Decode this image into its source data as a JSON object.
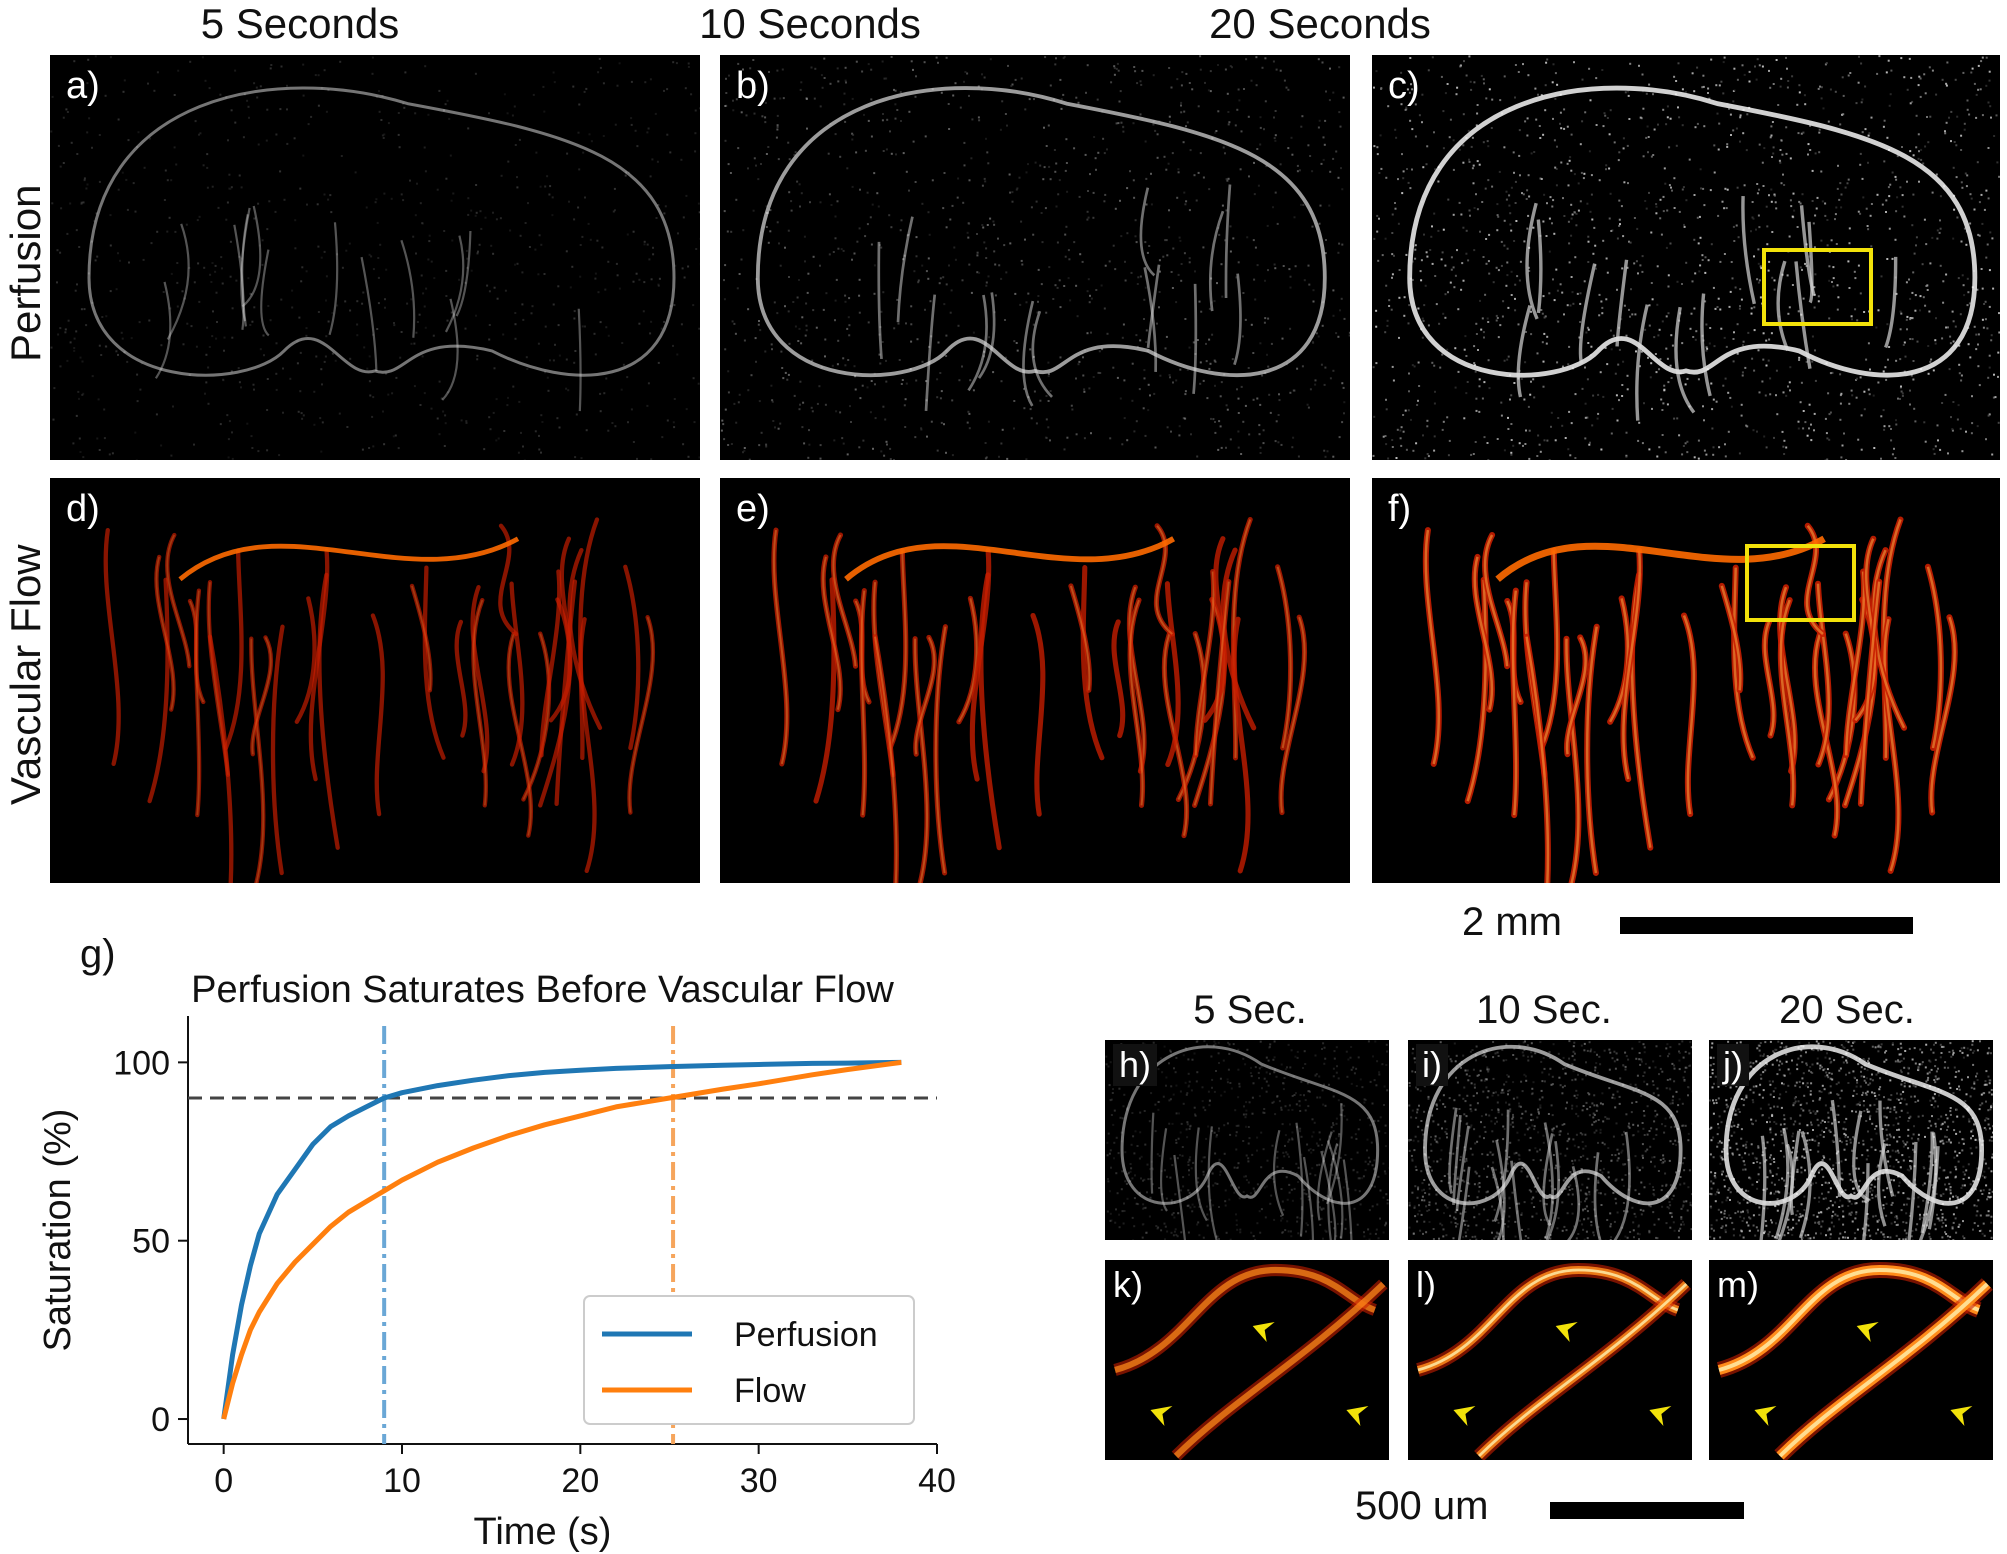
{
  "top_figure": {
    "column_titles": [
      "5 Seconds",
      "10 Seconds",
      "20 Seconds"
    ],
    "row_titles": [
      "Perfusion",
      "Vascular Flow"
    ],
    "panels": [
      {
        "label": "a)",
        "row": "perfusion",
        "col": 0,
        "intensity": 0.35
      },
      {
        "label": "b)",
        "row": "perfusion",
        "col": 1,
        "intensity": 0.6
      },
      {
        "label": "c)",
        "row": "perfusion",
        "col": 2,
        "intensity": 0.95
      },
      {
        "label": "d)",
        "row": "flow",
        "col": 0,
        "intensity": 0.45
      },
      {
        "label": "e)",
        "row": "flow",
        "col": 1,
        "intensity": 0.7
      },
      {
        "label": "f)",
        "row": "flow",
        "col": 2,
        "intensity": 1.0
      }
    ],
    "scalebar_label": "2 mm",
    "highlight_color": "#f2e20a"
  },
  "chart_label": "g)",
  "chart_data": {
    "type": "line",
    "title": "Perfusion Saturates Before Vascular Flow",
    "xlabel": "Time (s)",
    "ylabel": "Saturation (%)",
    "xlim": [
      -2,
      40
    ],
    "ylim": [
      -7,
      113
    ],
    "xticks": [
      0,
      10,
      20,
      30,
      40
    ],
    "yticks": [
      0,
      50,
      100
    ],
    "series": [
      {
        "name": "Perfusion",
        "color": "#1f77b4",
        "x": [
          0,
          0.5,
          1,
          1.5,
          2,
          3,
          4,
          5,
          6,
          7,
          8,
          9,
          10,
          12,
          14,
          16,
          18,
          20,
          22,
          25,
          28,
          30,
          33,
          35,
          38
        ],
        "y": [
          0,
          18,
          32,
          43,
          52,
          63,
          70,
          77,
          82,
          85,
          87.5,
          90,
          91.5,
          93.5,
          95,
          96.3,
          97.2,
          97.8,
          98.3,
          98.8,
          99.2,
          99.4,
          99.7,
          99.8,
          100
        ]
      },
      {
        "name": "Flow",
        "color": "#ff7f0e",
        "x": [
          0,
          0.5,
          1,
          1.5,
          2,
          3,
          4,
          5,
          6,
          7,
          8,
          9,
          10,
          12,
          14,
          16,
          18,
          20,
          22,
          25,
          28,
          30,
          33,
          35,
          38
        ],
        "y": [
          0,
          10,
          18,
          25,
          30,
          38,
          44,
          49,
          54,
          58,
          61,
          64,
          67,
          72,
          76,
          79.5,
          82.5,
          85,
          87.5,
          90,
          92.5,
          94,
          96.5,
          98,
          100
        ]
      }
    ],
    "reference_lines": [
      {
        "orientation": "horizontal",
        "value": 90,
        "color": "#444444",
        "style": "dashed"
      },
      {
        "orientation": "vertical",
        "value": 9,
        "color": "#6aa7d6",
        "style": "dash-dot"
      },
      {
        "orientation": "vertical",
        "value": 25.2,
        "color": "#f6a55c",
        "style": "dash-dot"
      }
    ],
    "legend": {
      "position": "lower-right",
      "entries": [
        "Perfusion",
        "Flow"
      ]
    },
    "grid": false
  },
  "inset_figure": {
    "column_titles": [
      "5 Sec.",
      "10 Sec.",
      "20 Sec."
    ],
    "panels": [
      {
        "label": "h)",
        "row": "perfusion",
        "col": 0,
        "intensity": 0.35
      },
      {
        "label": "i)",
        "row": "perfusion",
        "col": 1,
        "intensity": 0.6
      },
      {
        "label": "j)",
        "row": "perfusion",
        "col": 2,
        "intensity": 0.9
      },
      {
        "label": "k)",
        "row": "flow",
        "col": 0,
        "intensity": 0.45
      },
      {
        "label": "l)",
        "row": "flow",
        "col": 1,
        "intensity": 0.7
      },
      {
        "label": "m)",
        "row": "flow",
        "col": 2,
        "intensity": 1.0
      }
    ],
    "scalebar_label": "500 um",
    "arrow_color": "#f2e20a"
  }
}
